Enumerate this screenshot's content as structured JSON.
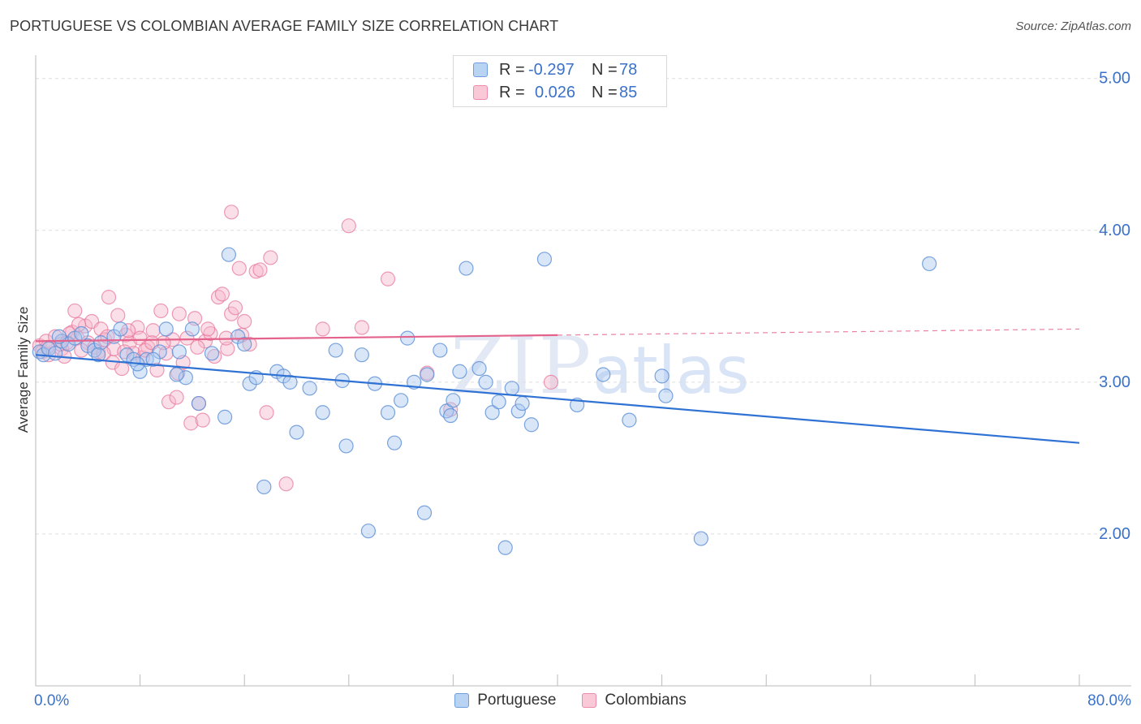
{
  "title": "PORTUGUESE VS COLOMBIAN AVERAGE FAMILY SIZE CORRELATION CHART",
  "source": "Source: ZipAtlas.com",
  "watermark": {
    "zip": "ZIP",
    "atlas": "atlas"
  },
  "colors": {
    "portuguese_fill": "#a8c8f0",
    "portuguese_stroke": "#5b8fd6",
    "portuguese_line": "#2f72d4",
    "colombian_fill": "#f6b8cc",
    "colombian_stroke": "#e8799d",
    "colombian_line": "#e4638c",
    "axis_text": "#3b72c8",
    "grid": "#dddddd"
  },
  "legend": {
    "rows": [
      {
        "r_label": "R =",
        "r_value": "-0.297",
        "n_label": "N =",
        "n_value": "78"
      },
      {
        "r_label": "R =",
        "r_value": "0.026",
        "n_label": "N =",
        "n_value": "85"
      }
    ]
  },
  "bottom_legend": {
    "portuguese": "Portuguese",
    "colombians": "Colombians"
  },
  "chart_data": {
    "type": "scatter",
    "title": "PORTUGUESE VS COLOMBIAN AVERAGE FAMILY SIZE CORRELATION CHART",
    "xlabel": "",
    "ylabel": "Average Family Size",
    "xlim": [
      0,
      80
    ],
    "ylim": [
      1.0,
      5.1
    ],
    "x_tick_labels": {
      "min": "0.0%",
      "max": "80.0%"
    },
    "y_ticks": [
      {
        "value": 2.0,
        "label": "2.00"
      },
      {
        "value": 3.0,
        "label": "3.00"
      },
      {
        "value": 4.0,
        "label": "4.00"
      },
      {
        "value": 5.0,
        "label": "5.00"
      }
    ],
    "grid": true,
    "legend_placement": "top-center",
    "series": [
      {
        "name": "Portuguese",
        "trend": {
          "x0": 0,
          "y0": 3.18,
          "x1": 80,
          "y1": 2.6
        },
        "points": [
          [
            0.3,
            3.2
          ],
          [
            0.6,
            3.18
          ],
          [
            1.0,
            3.22
          ],
          [
            1.5,
            3.19
          ],
          [
            2.0,
            3.27
          ],
          [
            2.5,
            3.25
          ],
          [
            3.0,
            3.29
          ],
          [
            3.5,
            3.32
          ],
          [
            4.0,
            3.24
          ],
          [
            4.5,
            3.21
          ],
          [
            5.0,
            3.26
          ],
          [
            6.0,
            3.3
          ],
          [
            6.5,
            3.35
          ],
          [
            7.0,
            3.18
          ],
          [
            7.5,
            3.15
          ],
          [
            8.0,
            3.07
          ],
          [
            8.5,
            3.15
          ],
          [
            9.5,
            3.2
          ],
          [
            10.0,
            3.35
          ],
          [
            11.0,
            3.2
          ],
          [
            11.5,
            3.03
          ],
          [
            12.0,
            3.35
          ],
          [
            12.5,
            2.86
          ],
          [
            13.5,
            3.19
          ],
          [
            14.5,
            2.77
          ],
          [
            15.5,
            3.3
          ],
          [
            16.0,
            3.25
          ],
          [
            14.8,
            3.84
          ],
          [
            16.4,
            2.99
          ],
          [
            16.9,
            3.03
          ],
          [
            17.5,
            2.31
          ],
          [
            18.5,
            3.07
          ],
          [
            19.0,
            3.04
          ],
          [
            19.5,
            3.0
          ],
          [
            20.0,
            2.67
          ],
          [
            21.0,
            2.96
          ],
          [
            22.0,
            2.8
          ],
          [
            23.0,
            3.21
          ],
          [
            23.5,
            3.01
          ],
          [
            23.8,
            2.58
          ],
          [
            25.0,
            3.18
          ],
          [
            26.0,
            2.99
          ],
          [
            27.0,
            2.8
          ],
          [
            27.5,
            2.6
          ],
          [
            28.5,
            3.29
          ],
          [
            28.0,
            2.88
          ],
          [
            29.0,
            3.0
          ],
          [
            30.0,
            3.05
          ],
          [
            29.8,
            2.14
          ],
          [
            31.0,
            3.21
          ],
          [
            31.5,
            2.81
          ],
          [
            31.8,
            2.78
          ],
          [
            32.0,
            2.88
          ],
          [
            32.5,
            3.07
          ],
          [
            33.0,
            3.75
          ],
          [
            34.0,
            3.09
          ],
          [
            34.5,
            3.0
          ],
          [
            35.0,
            2.8
          ],
          [
            35.5,
            2.87
          ],
          [
            36.0,
            1.91
          ],
          [
            36.5,
            2.96
          ],
          [
            37.0,
            2.81
          ],
          [
            37.3,
            2.86
          ],
          [
            38.0,
            2.72
          ],
          [
            39.0,
            3.81
          ],
          [
            41.5,
            2.85
          ],
          [
            43.5,
            3.05
          ],
          [
            45.5,
            2.75
          ],
          [
            48.0,
            3.04
          ],
          [
            48.3,
            2.91
          ],
          [
            51.0,
            1.97
          ],
          [
            68.5,
            3.78
          ],
          [
            25.5,
            2.02
          ],
          [
            9.0,
            3.15
          ],
          [
            1.8,
            3.3
          ],
          [
            4.8,
            3.18
          ],
          [
            7.8,
            3.12
          ],
          [
            10.8,
            3.05
          ]
        ]
      },
      {
        "name": "Colombians",
        "trend": {
          "x0": 0,
          "y0": 3.27,
          "x1": 40,
          "y1": 3.31,
          "dash_to_x": 80,
          "dash_to_y": 3.35
        },
        "points": [
          [
            0.3,
            3.24
          ],
          [
            0.5,
            3.2
          ],
          [
            0.8,
            3.27
          ],
          [
            1.0,
            3.18
          ],
          [
            1.5,
            3.3
          ],
          [
            2.0,
            3.22
          ],
          [
            2.2,
            3.17
          ],
          [
            2.8,
            3.33
          ],
          [
            3.0,
            3.47
          ],
          [
            3.2,
            3.29
          ],
          [
            3.8,
            3.37
          ],
          [
            4.0,
            3.26
          ],
          [
            4.3,
            3.4
          ],
          [
            4.8,
            3.2
          ],
          [
            5.0,
            3.35
          ],
          [
            5.3,
            3.28
          ],
          [
            5.6,
            3.56
          ],
          [
            5.9,
            3.13
          ],
          [
            6.0,
            3.22
          ],
          [
            6.3,
            3.44
          ],
          [
            6.6,
            3.09
          ],
          [
            6.9,
            3.31
          ],
          [
            7.2,
            3.26
          ],
          [
            7.5,
            3.19
          ],
          [
            7.8,
            3.36
          ],
          [
            8.0,
            3.29
          ],
          [
            8.2,
            3.16
          ],
          [
            8.6,
            3.23
          ],
          [
            9.0,
            3.34
          ],
          [
            9.3,
            3.08
          ],
          [
            9.6,
            3.47
          ],
          [
            10.0,
            3.19
          ],
          [
            10.2,
            2.87
          ],
          [
            10.5,
            3.28
          ],
          [
            10.8,
            2.9
          ],
          [
            11.0,
            3.45
          ],
          [
            11.3,
            3.13
          ],
          [
            11.6,
            3.29
          ],
          [
            11.9,
            2.73
          ],
          [
            12.2,
            3.42
          ],
          [
            12.5,
            2.86
          ],
          [
            12.8,
            2.75
          ],
          [
            13.0,
            3.27
          ],
          [
            13.4,
            3.32
          ],
          [
            13.7,
            3.17
          ],
          [
            14.0,
            3.56
          ],
          [
            14.3,
            3.58
          ],
          [
            14.7,
            3.22
          ],
          [
            15.0,
            3.45
          ],
          [
            15.3,
            3.49
          ],
          [
            15.6,
            3.75
          ],
          [
            15.0,
            4.12
          ],
          [
            16.0,
            3.4
          ],
          [
            16.4,
            3.25
          ],
          [
            16.9,
            3.73
          ],
          [
            17.2,
            3.74
          ],
          [
            17.7,
            2.8
          ],
          [
            18.0,
            3.82
          ],
          [
            19.2,
            2.33
          ],
          [
            22.0,
            3.35
          ],
          [
            24.0,
            4.03
          ],
          [
            25.0,
            3.36
          ],
          [
            27.0,
            3.68
          ],
          [
            30.0,
            3.06
          ],
          [
            31.8,
            2.82
          ],
          [
            39.5,
            3.0
          ],
          [
            0.9,
            3.23
          ],
          [
            1.9,
            3.25
          ],
          [
            2.6,
            3.32
          ],
          [
            3.5,
            3.21
          ],
          [
            4.5,
            3.23
          ],
          [
            5.5,
            3.3
          ],
          [
            6.8,
            3.2
          ],
          [
            8.4,
            3.21
          ],
          [
            9.8,
            3.26
          ],
          [
            10.9,
            3.06
          ],
          [
            12.4,
            3.23
          ],
          [
            13.2,
            3.35
          ],
          [
            14.6,
            3.29
          ],
          [
            15.8,
            3.31
          ],
          [
            5.2,
            3.19
          ],
          [
            7.1,
            3.34
          ],
          [
            8.9,
            3.26
          ],
          [
            3.3,
            3.38
          ],
          [
            2.4,
            3.26
          ]
        ]
      }
    ]
  }
}
